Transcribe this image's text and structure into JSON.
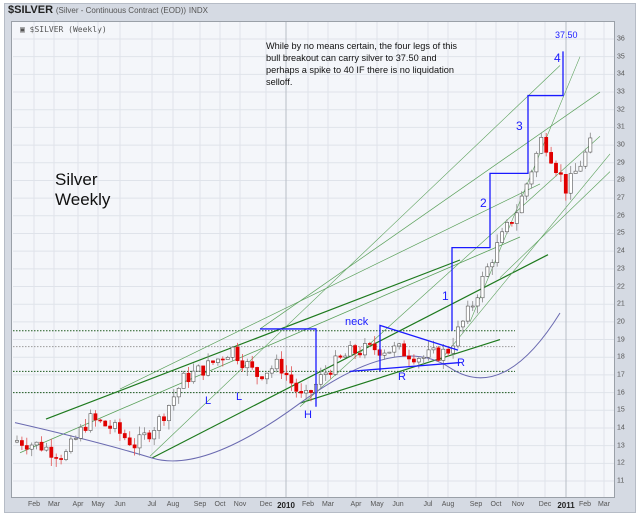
{
  "header": {
    "symbol": "$SILVER",
    "description": "(Silver - Continuous Contract (EOD))",
    "exchange": "INDX"
  },
  "plot_label": "▣ $SILVER (Weekly)",
  "big_label": [
    "Silver",
    "Weekly"
  ],
  "annotation_note": "While by no means certain, the four legs of this bull breakout can carry silver to 37.50 and perhaps a spike to 40 IF there is no liquidation selloff.",
  "markers": {
    "target_price": "37.50",
    "legs": [
      "1",
      "2",
      "3",
      "4"
    ],
    "neck": "neck",
    "left_shoulders": [
      "L",
      "L"
    ],
    "head": "H",
    "right_shoulders": [
      "R",
      "R"
    ]
  },
  "colors": {
    "up_candle": "#ffffff",
    "down_candle": "#e00000",
    "annotation": "#1a1aff",
    "trendline_dark": "#1e7a1e",
    "trendline_light": "#5aa05a",
    "moving_average": "#6a6ab0",
    "grid": "#dfe3ea"
  },
  "chart_data": {
    "type": "candlestick",
    "title": "$SILVER (Weekly)",
    "xlabel": "",
    "ylabel": "",
    "ylim": [
      11,
      36
    ],
    "y_ticks": [
      11,
      12,
      13,
      14,
      15,
      16,
      17,
      18,
      19,
      20,
      21,
      22,
      23,
      24,
      25,
      26,
      27,
      28,
      29,
      30,
      31,
      32,
      33,
      34,
      35,
      36
    ],
    "x_ticks": [
      "Feb",
      "Mar",
      "Apr",
      "May",
      "Jun",
      "Jul",
      "Aug",
      "Sep",
      "Oct",
      "Nov",
      "Dec",
      "2010",
      "Feb",
      "Mar",
      "Apr",
      "May",
      "Jun",
      "Jul",
      "Aug",
      "Sep",
      "Oct",
      "Nov",
      "Dec",
      "2011",
      "Feb",
      "Mar"
    ],
    "horizontal_levels": [
      19.5,
      18.6,
      17.2,
      16.0
    ],
    "target": 37.5,
    "approx_path": [
      {
        "t": "2009-02",
        "close": 13.3
      },
      {
        "t": "2009-03",
        "close": 13.0
      },
      {
        "t": "2009-04",
        "close": 12.4
      },
      {
        "t": "2009-05",
        "close": 14.5
      },
      {
        "t": "2009-06",
        "close": 14.0
      },
      {
        "t": "2009-07",
        "close": 13.0
      },
      {
        "t": "2009-08",
        "close": 14.5
      },
      {
        "t": "2009-09",
        "close": 16.8
      },
      {
        "t": "2009-10",
        "close": 17.5
      },
      {
        "t": "2009-11",
        "close": 18.5
      },
      {
        "t": "2009-12",
        "close": 17.0
      },
      {
        "t": "2010-01",
        "close": 17.6
      },
      {
        "t": "2010-02",
        "close": 15.5
      },
      {
        "t": "2010-03",
        "close": 17.3
      },
      {
        "t": "2010-04",
        "close": 18.3
      },
      {
        "t": "2010-05",
        "close": 18.5
      },
      {
        "t": "2010-06",
        "close": 18.4
      },
      {
        "t": "2010-07",
        "close": 18.0
      },
      {
        "t": "2010-08",
        "close": 18.3
      },
      {
        "t": "2010-09",
        "close": 20.8
      },
      {
        "t": "2010-10",
        "close": 24.0
      },
      {
        "t": "2010-11",
        "close": 26.5
      },
      {
        "t": "2010-12",
        "close": 30.5
      },
      {
        "t": "2011-01",
        "close": 27.5
      },
      {
        "t": "2011-02",
        "close": 30.0
      }
    ]
  }
}
